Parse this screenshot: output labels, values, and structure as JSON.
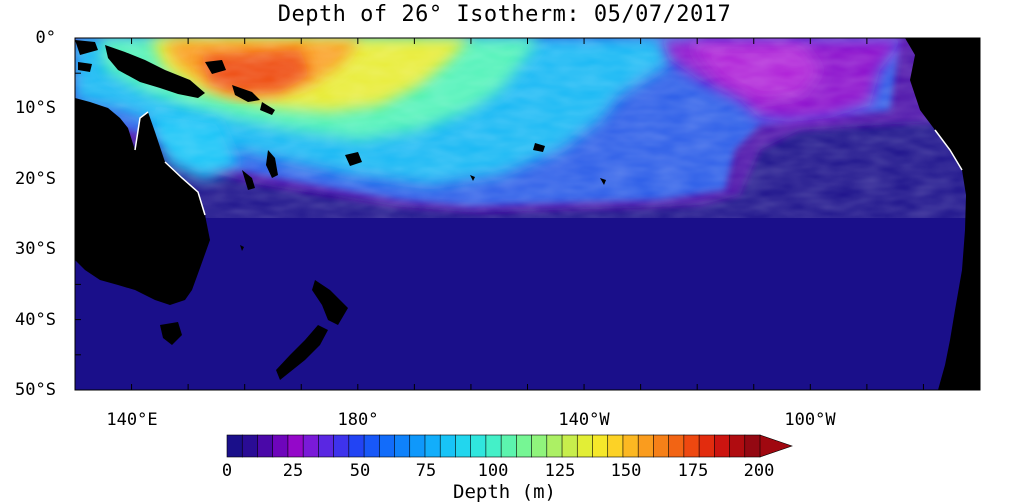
{
  "title": "Depth of 26° Isotherm: 05/07/2017",
  "map": {
    "projection": "equirectangular",
    "lon_range_east": [
      130,
      290
    ],
    "lat_range": [
      0,
      -50
    ],
    "ocean_base_color": "#1a0f8a",
    "land_color": "#000000",
    "y_ticks": [
      "0°",
      "10°S",
      "20°S",
      "30°S",
      "40°S",
      "50°S"
    ],
    "x_ticks": [
      {
        "label": "140°E",
        "lon": 140
      },
      {
        "label": "180°",
        "lon": 180
      },
      {
        "label": "140°W",
        "lon": 220
      },
      {
        "label": "100°W",
        "lon": 260
      }
    ]
  },
  "colorbar": {
    "label": "Depth (m)",
    "min": 0,
    "max": 200,
    "step": 5,
    "ticks": [
      "0",
      "25",
      "50",
      "75",
      "100",
      "125",
      "150",
      "175",
      "200"
    ],
    "colors": [
      "#1a0f8a",
      "#2a0c95",
      "#4a08a8",
      "#6e05bb",
      "#9408c9",
      "#7a1ad8",
      "#5a27e2",
      "#3e33ec",
      "#2244f4",
      "#1858f8",
      "#126cfa",
      "#0f82fb",
      "#0f98fb",
      "#12aefb",
      "#18c4f7",
      "#22d6ee",
      "#30e6de",
      "#44f0c8",
      "#5cf4ae",
      "#76f694",
      "#90f47c",
      "#acf064",
      "#c8ee4c",
      "#e2ee36",
      "#f6e82a",
      "#fcd226",
      "#fcb822",
      "#fa9c1e",
      "#f68018",
      "#f26414",
      "#ee4810",
      "#e22c0e",
      "#cc1410",
      "#b00c10",
      "#940812"
    ],
    "arrow_color": "#a00810"
  }
}
